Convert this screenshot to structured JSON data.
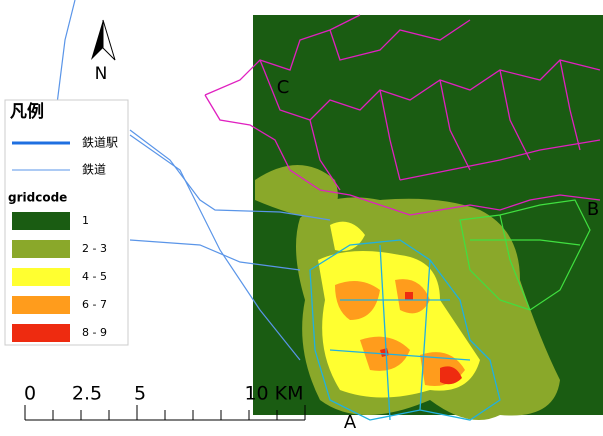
{
  "north": "N",
  "legend": {
    "title": "凡例",
    "lines": [
      {
        "label": "鉄道駅",
        "color": "#1f6fe0",
        "width": 3
      },
      {
        "label": "鉄道",
        "color": "#5a95e8",
        "width": 1
      }
    ],
    "field": "gridcode",
    "classes": [
      {
        "label": "1",
        "color": "#1a5c12"
      },
      {
        "label": "2 - 3",
        "color": "#8aa82a"
      },
      {
        "label": "4 - 5",
        "color": "#ffff30"
      },
      {
        "label": "6 - 7",
        "color": "#ff9c1c"
      },
      {
        "label": "8 - 9",
        "color": "#ee2b10"
      }
    ]
  },
  "scale_bar": {
    "labels": [
      "0",
      "2.5",
      "5",
      "10 KM"
    ]
  },
  "region_labels": [
    "A",
    "B",
    "C"
  ]
}
